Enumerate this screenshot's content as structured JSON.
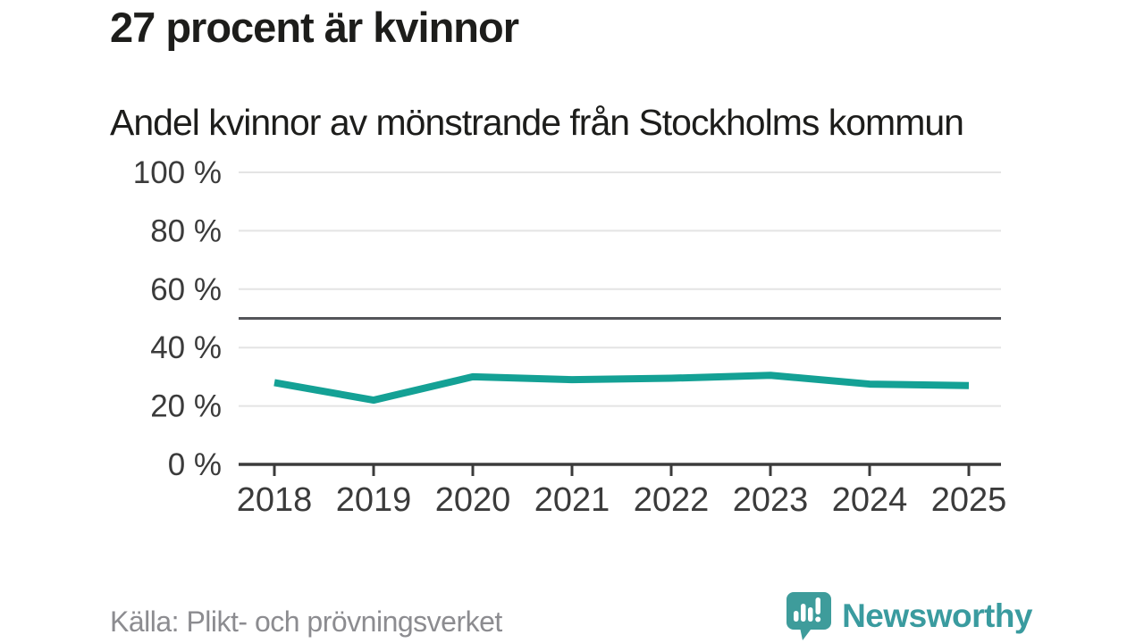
{
  "header": {
    "title": "27 procent är kvinnor",
    "subtitle": "Andel kvinnor av mönstrande från Stockholms kommun"
  },
  "chart_data": {
    "type": "line",
    "title": "27 procent är kvinnor",
    "subtitle": "Andel kvinnor av mönstrande från Stockholms kommun",
    "x": [
      "2018",
      "2019",
      "2020",
      "2021",
      "2022",
      "2023",
      "2024",
      "2025"
    ],
    "series": [
      {
        "name": "Andel kvinnor av mönstrande",
        "values": [
          28,
          22,
          30,
          29,
          29.5,
          30.5,
          27.5,
          27
        ]
      }
    ],
    "xlabel": "",
    "ylabel": "",
    "ylim": [
      0,
      100
    ],
    "yticks": [
      0,
      20,
      40,
      60,
      80,
      100
    ],
    "ytick_labels": [
      "0 %",
      "20 %",
      "40 %",
      "60 %",
      "80 %",
      "100 %"
    ],
    "reference_line": 50,
    "grid": true,
    "legend": "none",
    "colors": {
      "line": "#14a195",
      "grid": "#e4e4e4",
      "axis": "#3b3b3b",
      "axis_text": "#3b3b3b",
      "reference": "#54555a"
    }
  },
  "footer": {
    "source": "Källa: Plikt- och prövningsverket",
    "brand": "Newsworthy",
    "brand_color": "#3a9b9f",
    "logo_fill": "#3e9c9b"
  }
}
